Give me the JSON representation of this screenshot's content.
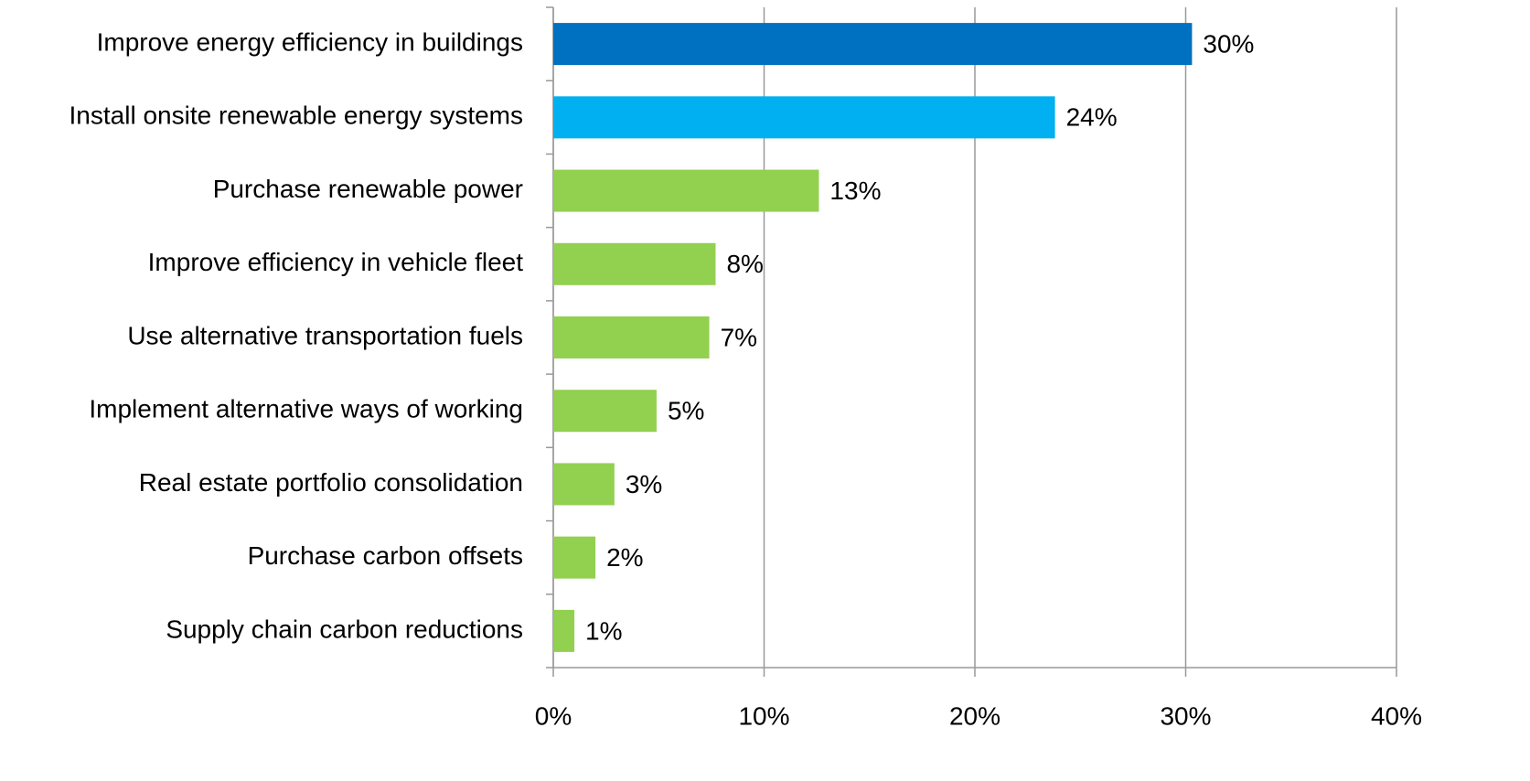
{
  "chart_data": {
    "type": "hbar",
    "categories": [
      "Improve energy efficiency in buildings",
      "Install onsite renewable energy systems",
      "Purchase renewable power",
      "Improve efficiency in vehicle fleet",
      "Use alternative transportation fuels",
      "Implement alternative ways of working",
      "Real estate portfolio consolidation",
      "Purchase carbon offsets",
      "Supply chain carbon reductions"
    ],
    "values": [
      30.3,
      23.8,
      12.6,
      7.7,
      7.4,
      4.9,
      2.9,
      2.0,
      1.0
    ],
    "value_labels": [
      "30%",
      "24%",
      "13%",
      "8%",
      "7%",
      "5%",
      "3%",
      "2%",
      "1%"
    ],
    "colors": [
      "#0070c0",
      "#00b0f0",
      "#92d050",
      "#92d050",
      "#92d050",
      "#92d050",
      "#92d050",
      "#92d050",
      "#92d050"
    ],
    "xlim": [
      0,
      40
    ],
    "xticks": [
      {
        "value": 0,
        "label": "0%"
      },
      {
        "value": 10,
        "label": "10%"
      },
      {
        "value": 20,
        "label": "20%"
      },
      {
        "value": 30,
        "label": "30%"
      },
      {
        "value": 40,
        "label": "40%"
      }
    ],
    "grid": true
  }
}
